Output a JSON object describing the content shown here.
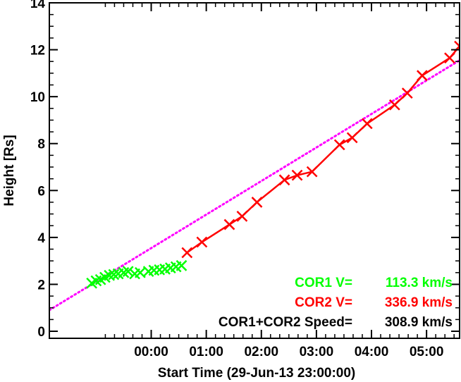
{
  "chart_data": {
    "type": "line",
    "xlabel": "Start Time (29-Jun-13 23:00:00)",
    "ylabel": "Height [Rs]",
    "xlim": [
      -0.85,
      6.6
    ],
    "ylim": [
      -0.3,
      14
    ],
    "x_ticks": [
      1,
      2,
      3,
      4,
      5,
      6
    ],
    "x_tick_labels": [
      "00:00",
      "01:00",
      "02:00",
      "03:00",
      "04:00",
      "05:00"
    ],
    "y_ticks": [
      0,
      2,
      4,
      6,
      8,
      10,
      12,
      14
    ],
    "y_tick_labels": [
      "0",
      "2",
      "4",
      "6",
      "8",
      "10",
      "12",
      "14"
    ],
    "series": [
      {
        "name": "COR1",
        "color": "#00ff00",
        "marker": "x",
        "line": false,
        "points": [
          [
            -0.08,
            2.05
          ],
          [
            0.0,
            2.15
          ],
          [
            0.08,
            2.2
          ],
          [
            0.16,
            2.3
          ],
          [
            0.24,
            2.38
          ],
          [
            0.32,
            2.42
          ],
          [
            0.4,
            2.45
          ],
          [
            0.5,
            2.5
          ],
          [
            0.58,
            2.55
          ],
          [
            0.7,
            2.45
          ],
          [
            0.8,
            2.5
          ],
          [
            0.95,
            2.55
          ],
          [
            1.05,
            2.6
          ],
          [
            1.15,
            2.62
          ],
          [
            1.25,
            2.65
          ],
          [
            1.35,
            2.7
          ],
          [
            1.45,
            2.75
          ],
          [
            1.55,
            2.8
          ]
        ]
      },
      {
        "name": "COR2",
        "color": "#ff0000",
        "marker": "x",
        "line": true,
        "points": [
          [
            1.65,
            3.35
          ],
          [
            1.92,
            3.8
          ],
          [
            2.42,
            4.55
          ],
          [
            2.65,
            4.9
          ],
          [
            2.92,
            5.5
          ],
          [
            3.42,
            6.45
          ],
          [
            3.65,
            6.65
          ],
          [
            3.92,
            6.8
          ],
          [
            4.42,
            7.95
          ],
          [
            4.65,
            8.25
          ],
          [
            4.92,
            8.85
          ],
          [
            5.42,
            9.65
          ],
          [
            5.65,
            10.15
          ],
          [
            5.92,
            10.9
          ],
          [
            6.42,
            11.65
          ],
          [
            6.6,
            12.15
          ]
        ]
      }
    ],
    "fit": {
      "color": "#ff00ff",
      "style": "dotted",
      "x_start": -0.85,
      "y_start": 0.9,
      "x_end": 6.6,
      "y_end": 11.55
    },
    "legend": {
      "placement": "bottom-right",
      "entries": [
        {
          "label": "COR1 V=",
          "value": "113.3 km/s",
          "color": "#00ff00"
        },
        {
          "label": "COR2 V=",
          "value": "336.9 km/s",
          "color": "#ff0000"
        },
        {
          "label": "COR1+COR2 Speed=",
          "value": "308.9 km/s",
          "color": "#000000"
        }
      ]
    },
    "grid": false
  }
}
